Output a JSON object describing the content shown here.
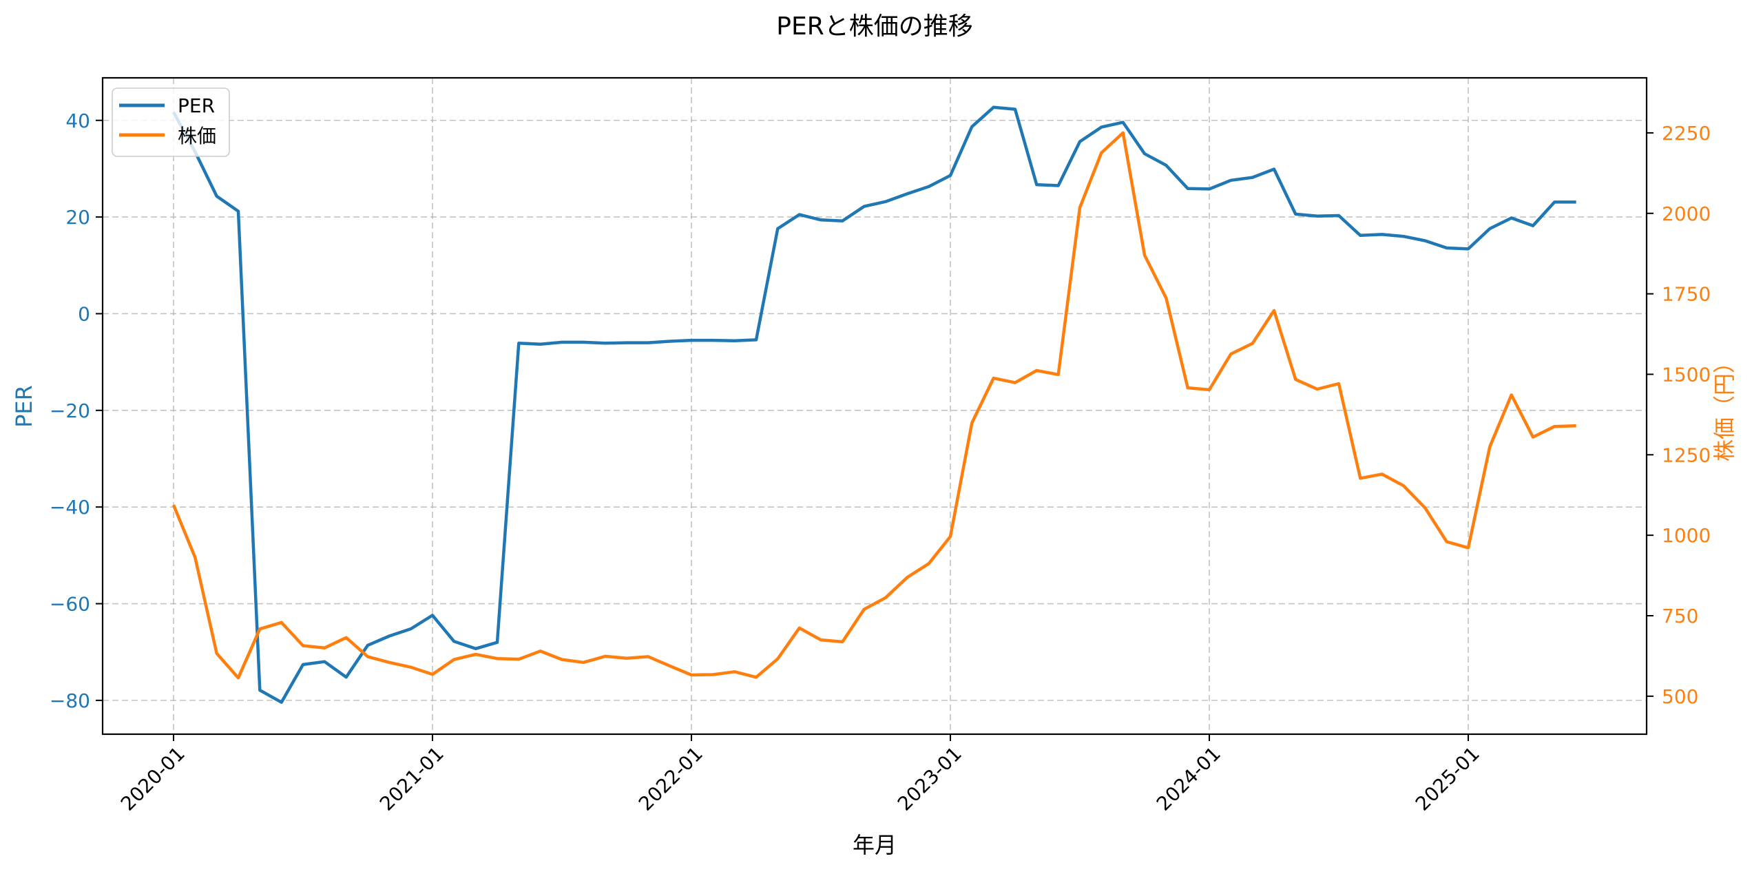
{
  "chart_data": {
    "type": "line",
    "title": "PERと株価の推移",
    "xlabel": "年月",
    "ylabel": "PER",
    "ylabel_right": "株価（円）",
    "grid": true,
    "legend": {
      "position": "upper left",
      "entries": [
        "PER",
        "株価"
      ]
    },
    "x_tick_labels": [
      "2020-01",
      "2021-01",
      "2022-01",
      "2023-01",
      "2024-01",
      "2025-01"
    ],
    "y_ticks_left": [
      -80,
      -60,
      -40,
      -20,
      0,
      20,
      40
    ],
    "y_ticks_right": [
      500,
      750,
      1000,
      1250,
      1500,
      1750,
      2000,
      2250
    ],
    "ylim_left": [
      -87.0,
      48.8
    ],
    "ylim_right": [
      382,
      2421
    ],
    "x": [
      "2020-01",
      "2020-02",
      "2020-03",
      "2020-04",
      "2020-05",
      "2020-06",
      "2020-07",
      "2020-08",
      "2020-09",
      "2020-10",
      "2020-11",
      "2020-12",
      "2021-01",
      "2021-02",
      "2021-03",
      "2021-04",
      "2021-05",
      "2021-06",
      "2021-07",
      "2021-08",
      "2021-09",
      "2021-10",
      "2021-11",
      "2021-12",
      "2022-01",
      "2022-02",
      "2022-03",
      "2022-04",
      "2022-05",
      "2022-06",
      "2022-07",
      "2022-08",
      "2022-09",
      "2022-10",
      "2022-11",
      "2022-12",
      "2023-01",
      "2023-02",
      "2023-03",
      "2023-04",
      "2023-05",
      "2023-06",
      "2023-07",
      "2023-08",
      "2023-09",
      "2023-10",
      "2023-11",
      "2023-12",
      "2024-01",
      "2024-02",
      "2024-03",
      "2024-04",
      "2024-05",
      "2024-06",
      "2024-07",
      "2024-08",
      "2024-09",
      "2024-10",
      "2024-11",
      "2024-12",
      "2025-01",
      "2025-02",
      "2025-03",
      "2025-04",
      "2025-05",
      "2025-06"
    ],
    "series": [
      {
        "name": "PER",
        "axis": "left",
        "color": "#1f77b4",
        "values": [
          41.7,
          33.5,
          24.3,
          21.2,
          -77.9,
          -80.4,
          -72.6,
          -72.0,
          -75.2,
          -68.6,
          -66.7,
          -65.2,
          -62.4,
          -67.8,
          -69.3,
          -68.0,
          -6.1,
          -6.3,
          -5.9,
          -5.9,
          -6.1,
          -6.0,
          -6.0,
          -5.7,
          -5.5,
          -5.5,
          -5.6,
          -5.4,
          17.6,
          20.5,
          19.4,
          19.2,
          22.2,
          23.2,
          24.8,
          26.3,
          28.6,
          38.7,
          42.7,
          42.3,
          26.7,
          26.5,
          35.6,
          38.6,
          39.6,
          33.1,
          30.7,
          25.9,
          25.8,
          27.6,
          28.2,
          29.9,
          20.6,
          20.2,
          20.3,
          16.2,
          16.4,
          16.0,
          15.1,
          13.6,
          13.4,
          17.6,
          19.8,
          18.2,
          23.1,
          23.1
        ]
      },
      {
        "name": "株価",
        "axis": "right",
        "color": "#ff7f0e",
        "values": [
          1094,
          931,
          633,
          557,
          709,
          729,
          657,
          650,
          682,
          623,
          605,
          590,
          568,
          614,
          630,
          617,
          615,
          640,
          614,
          605,
          624,
          618,
          623,
          594,
          566,
          567,
          576,
          559,
          616,
          712,
          675,
          669,
          770,
          806,
          869,
          912,
          996,
          1349,
          1488,
          1474,
          1512,
          1499,
          2018,
          2188,
          2250,
          1870,
          1737,
          1458,
          1452,
          1563,
          1596,
          1698,
          1484,
          1454,
          1471,
          1177,
          1190,
          1154,
          1085,
          980,
          961,
          1275,
          1436,
          1305,
          1338,
          1340
        ]
      }
    ]
  },
  "colors": {
    "per": "#1f77b4",
    "price": "#ff7f0e",
    "grid": "#b0b0b0",
    "frame": "#000000"
  }
}
